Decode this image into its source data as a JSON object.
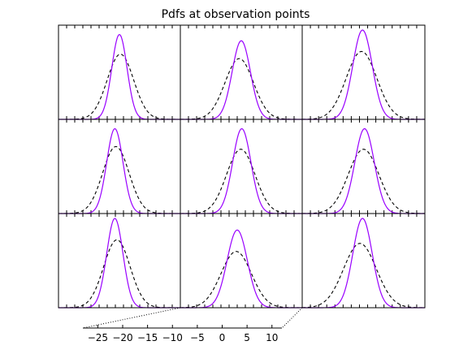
{
  "chart_data": {
    "type": "line",
    "title": "Pdfs at observation points",
    "grid": false,
    "layout": {
      "rows": 3,
      "cols": 3
    },
    "colors": {
      "solid": "#9900ff",
      "dashed": "#000000",
      "frame": "#000000"
    },
    "shared_x_axis": {
      "ticks": [
        -25,
        -20,
        -15,
        -10,
        -5,
        0,
        5,
        10
      ],
      "tick_labels": [
        "−25",
        "−20",
        "−15",
        "−10",
        "−5",
        "0",
        "5",
        "10"
      ],
      "range": [
        -28,
        12
      ]
    },
    "panels": [
      {
        "solid": {
          "mean": -19.5,
          "sd": 1.5,
          "peak": 0.95
        },
        "dashed": {
          "mean": -19.3,
          "sd": 2.6,
          "peak": 0.73
        }
      },
      {
        "solid": {
          "mean": 4.0,
          "sd": 1.8,
          "peak": 0.88
        },
        "dashed": {
          "mean": 3.6,
          "sd": 2.8,
          "peak": 0.68
        }
      },
      {
        "solid": {
          "mean": 3.8,
          "sd": 1.9,
          "peak": 1.0
        },
        "dashed": {
          "mean": 3.6,
          "sd": 3.0,
          "peak": 0.76
        }
      },
      {
        "solid": {
          "mean": -20.4,
          "sd": 1.6,
          "peak": 0.95
        },
        "dashed": {
          "mean": -20.2,
          "sd": 2.6,
          "peak": 0.75
        }
      },
      {
        "solid": {
          "mean": 4.1,
          "sd": 1.8,
          "peak": 0.95
        },
        "dashed": {
          "mean": 3.9,
          "sd": 2.8,
          "peak": 0.72
        }
      },
      {
        "solid": {
          "mean": 4.2,
          "sd": 1.9,
          "peak": 0.95
        },
        "dashed": {
          "mean": 4.0,
          "sd": 3.0,
          "peak": 0.72
        }
      },
      {
        "solid": {
          "mean": -20.4,
          "sd": 1.6,
          "peak": 1.0
        },
        "dashed": {
          "mean": -20.0,
          "sd": 2.6,
          "peak": 0.76
        }
      },
      {
        "solid": {
          "mean": 3.2,
          "sd": 2.0,
          "peak": 0.87
        },
        "dashed": {
          "mean": 3.0,
          "sd": 3.0,
          "peak": 0.63
        }
      },
      {
        "solid": {
          "mean": 3.8,
          "sd": 1.9,
          "peak": 1.0
        },
        "dashed": {
          "mean": 3.3,
          "sd": 3.2,
          "peak": 0.72
        }
      }
    ]
  }
}
